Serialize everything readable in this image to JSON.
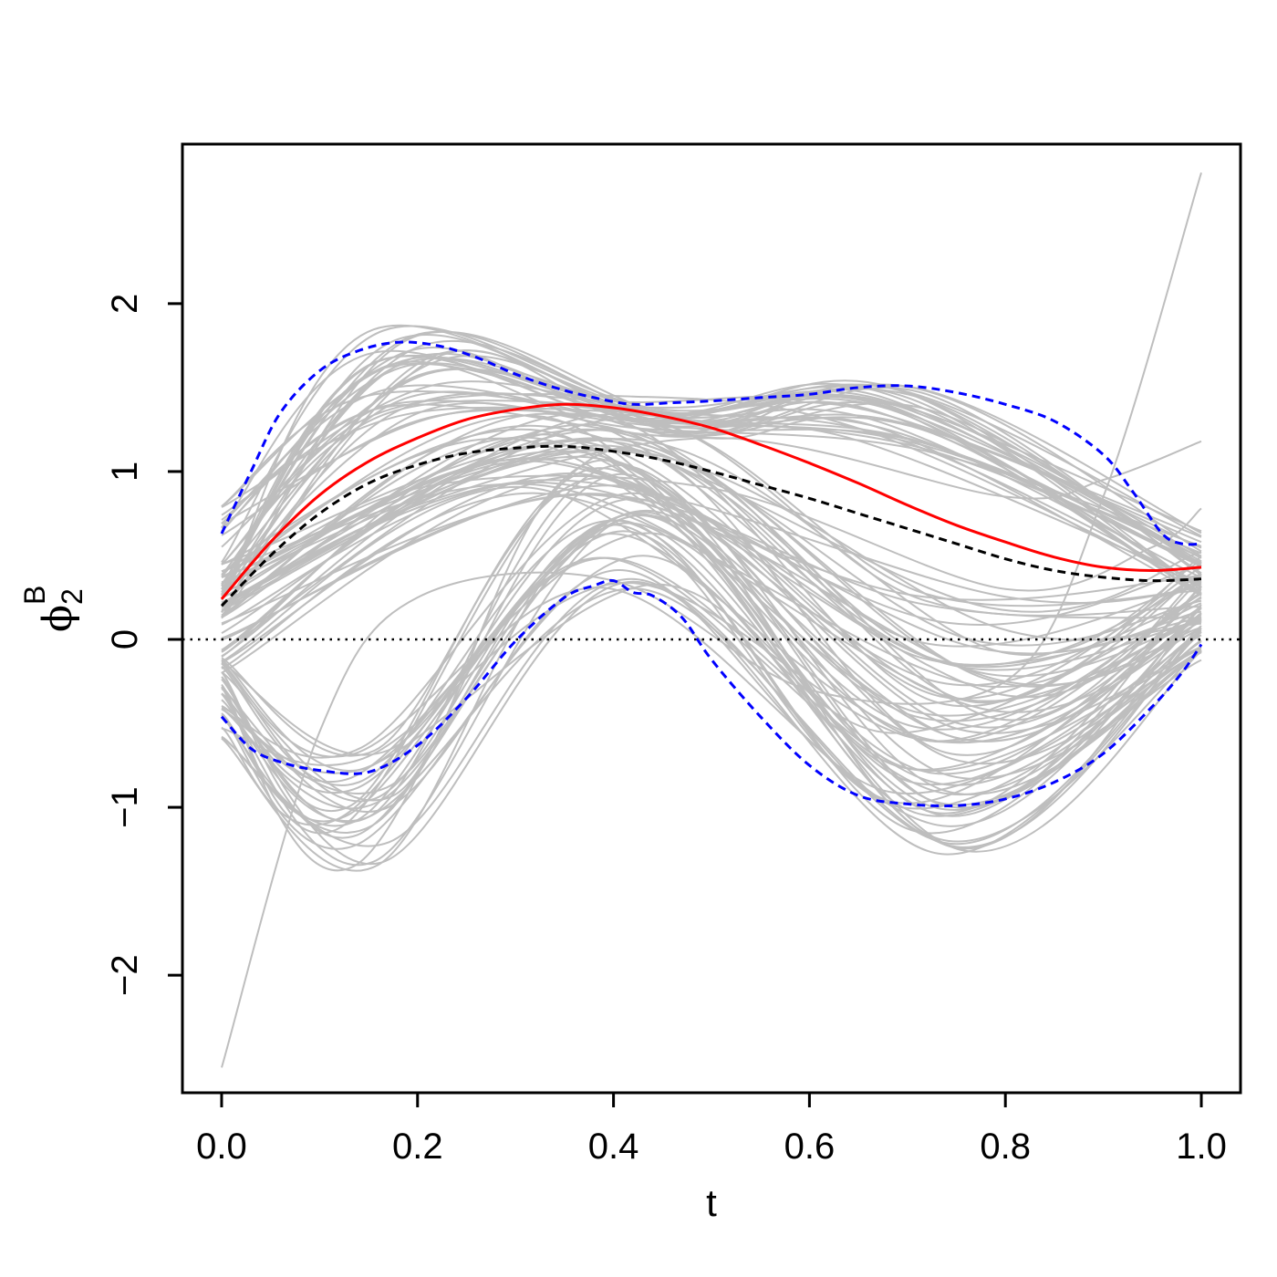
{
  "chart_data": {
    "type": "line",
    "xlabel": "t",
    "ylabel": {
      "symbol": "ϕ",
      "subscript": "2",
      "superscript": "B"
    },
    "xlim": [
      -0.04,
      1.04
    ],
    "ylim": [
      -2.7,
      2.95
    ],
    "x_ticks": [
      0.0,
      0.2,
      0.4,
      0.6,
      0.8,
      1.0
    ],
    "x_tick_labels": [
      "0.0",
      "0.2",
      "0.4",
      "0.6",
      "0.8",
      "1.0"
    ],
    "y_ticks": [
      -2,
      -1,
      0,
      1,
      2
    ],
    "y_tick_labels": [
      "−2",
      "−1",
      "0",
      "1",
      "2"
    ],
    "reference_line": {
      "y": 0,
      "style": "dotted",
      "color": "#000000"
    },
    "grid": false,
    "legend": "none",
    "colors": {
      "background_curves": "#bebebe",
      "estimate": "#ff0000",
      "mean": "#000000",
      "bands": "#0000ff"
    },
    "background_curve_families": [
      {
        "shape": "rise-peak",
        "count": 34,
        "start": [
          0.1,
          0.8
        ],
        "peak_t": [
          0.15,
          0.22
        ],
        "peak": [
          1.3,
          1.85
        ],
        "mid_t": [
          0.42,
          0.48
        ],
        "mid": [
          1.2,
          1.45
        ],
        "second_t": [
          0.65,
          0.72
        ],
        "second": [
          1.1,
          1.55
        ],
        "end": [
          0.25,
          0.65
        ]
      },
      {
        "shape": "wave",
        "count": 36,
        "start": [
          -0.2,
          0.45
        ],
        "peak_t": [
          0.3,
          0.42
        ],
        "peak": [
          0.85,
          1.35
        ],
        "trough_t": [
          0.7,
          0.8
        ],
        "trough": [
          -0.6,
          0.3
        ],
        "end": [
          0.05,
          0.55
        ]
      },
      {
        "shape": "deep-wave",
        "count": 30,
        "start": [
          -0.6,
          -0.1
        ],
        "trough_t": [
          0.12,
          0.18
        ],
        "trough": [
          -1.35,
          -0.6
        ],
        "peak_t": [
          0.38,
          0.44
        ],
        "peak": [
          0.3,
          1.2
        ],
        "trough2_t": [
          0.68,
          0.76
        ],
        "trough2": [
          -1.3,
          -0.5
        ],
        "end": [
          -0.15,
          0.35
        ]
      },
      {
        "shape": "polynomial",
        "count": 1,
        "x": [
          0.0,
          0.1,
          0.2,
          0.4,
          0.6,
          0.8,
          0.9,
          1.0
        ],
        "y": [
          -2.55,
          -0.55,
          0.25,
          0.35,
          -0.3,
          -0.25,
          0.85,
          2.78
        ]
      },
      {
        "shape": "polynomial",
        "count": 1,
        "x": [
          0.0,
          0.2,
          0.5,
          0.8,
          0.9,
          1.0
        ],
        "y": [
          0.2,
          0.8,
          1.2,
          0.85,
          0.95,
          1.18
        ]
      },
      {
        "shape": "polynomial",
        "count": 1,
        "x": [
          0.0,
          0.2,
          0.5,
          0.8,
          0.95,
          1.0
        ],
        "y": [
          0.3,
          0.9,
          0.9,
          0.3,
          0.55,
          0.78
        ]
      }
    ],
    "series": [
      {
        "role": "estimate",
        "color": "#ff0000",
        "dash": "solid",
        "x": [
          0.0,
          0.05,
          0.1,
          0.15,
          0.2,
          0.25,
          0.3,
          0.35,
          0.4,
          0.45,
          0.5,
          0.55,
          0.6,
          0.65,
          0.7,
          0.75,
          0.8,
          0.85,
          0.9,
          0.95,
          1.0
        ],
        "y": [
          0.24,
          0.58,
          0.86,
          1.06,
          1.2,
          1.31,
          1.37,
          1.4,
          1.38,
          1.33,
          1.26,
          1.16,
          1.05,
          0.93,
          0.8,
          0.68,
          0.58,
          0.49,
          0.43,
          0.41,
          0.43
        ]
      },
      {
        "role": "mean",
        "color": "#000000",
        "dash": "dashed",
        "x": [
          0.0,
          0.05,
          0.1,
          0.15,
          0.2,
          0.25,
          0.3,
          0.35,
          0.4,
          0.45,
          0.5,
          0.55,
          0.6,
          0.65,
          0.7,
          0.75,
          0.8,
          0.85,
          0.9,
          0.95,
          1.0
        ],
        "y": [
          0.2,
          0.5,
          0.75,
          0.93,
          1.04,
          1.11,
          1.14,
          1.15,
          1.12,
          1.07,
          1.0,
          0.92,
          0.84,
          0.75,
          0.66,
          0.57,
          0.48,
          0.41,
          0.37,
          0.35,
          0.36
        ]
      },
      {
        "role": "upper-band",
        "color": "#0000ff",
        "dash": "dashed",
        "x": [
          0.0,
          0.03,
          0.06,
          0.1,
          0.14,
          0.18,
          0.22,
          0.26,
          0.3,
          0.34,
          0.38,
          0.42,
          0.46,
          0.5,
          0.55,
          0.6,
          0.65,
          0.7,
          0.75,
          0.8,
          0.85,
          0.9,
          0.93,
          0.96,
          0.98,
          1.0
        ],
        "y": [
          0.63,
          1.0,
          1.35,
          1.6,
          1.72,
          1.77,
          1.75,
          1.68,
          1.58,
          1.5,
          1.44,
          1.4,
          1.41,
          1.42,
          1.44,
          1.46,
          1.5,
          1.51,
          1.47,
          1.4,
          1.3,
          1.1,
          0.88,
          0.63,
          0.57,
          0.57
        ]
      },
      {
        "role": "lower-band",
        "color": "#0000ff",
        "dash": "dashed",
        "x": [
          0.0,
          0.03,
          0.06,
          0.1,
          0.15,
          0.2,
          0.25,
          0.3,
          0.35,
          0.38,
          0.4,
          0.42,
          0.44,
          0.47,
          0.5,
          0.55,
          0.6,
          0.65,
          0.7,
          0.75,
          0.8,
          0.85,
          0.9,
          0.95,
          0.98,
          1.0
        ],
        "y": [
          -0.46,
          -0.65,
          -0.73,
          -0.78,
          -0.79,
          -0.63,
          -0.35,
          -0.01,
          0.25,
          0.32,
          0.35,
          0.28,
          0.26,
          0.13,
          -0.12,
          -0.46,
          -0.75,
          -0.93,
          -0.98,
          -0.99,
          -0.95,
          -0.85,
          -0.68,
          -0.4,
          -0.2,
          -0.03
        ]
      }
    ]
  }
}
